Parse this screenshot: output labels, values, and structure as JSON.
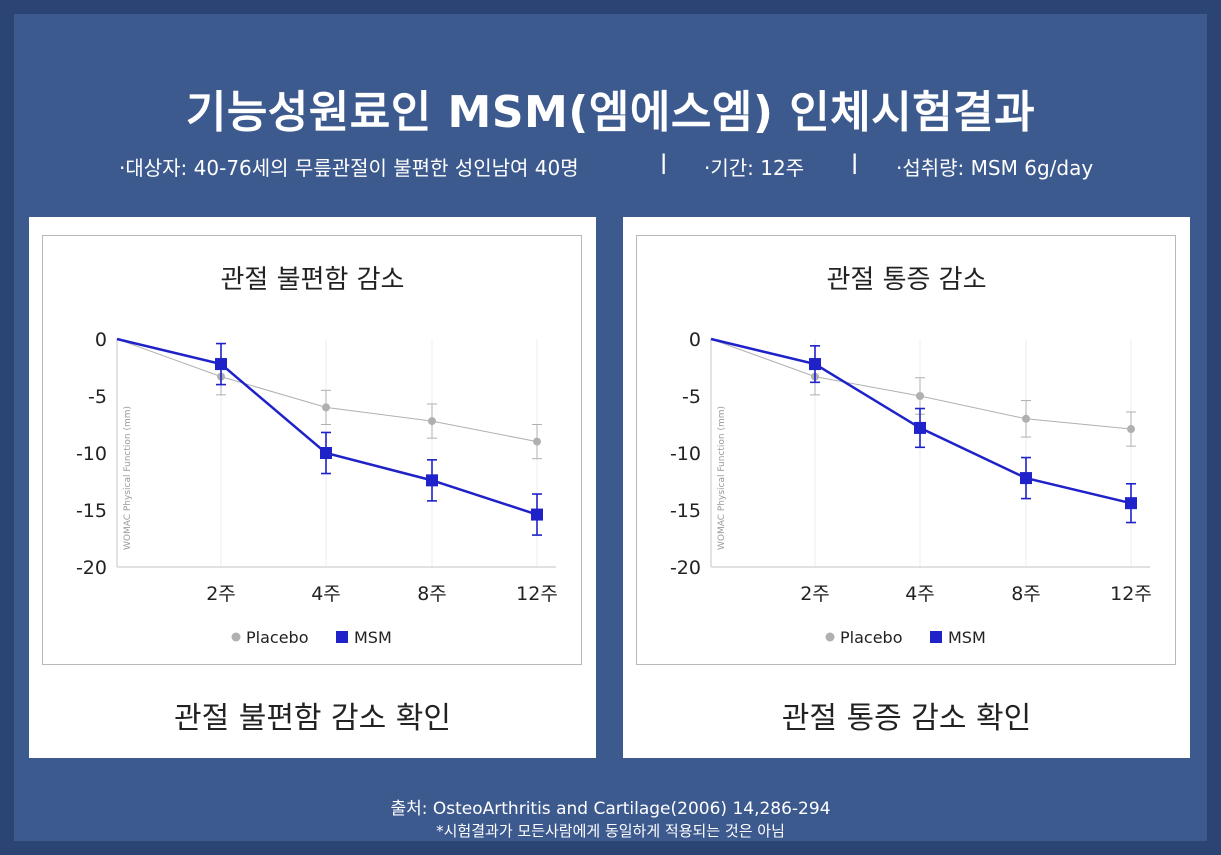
{
  "header": {
    "title": "기능성원료인 MSM(엠에스엠) 인체시험결과",
    "subject": "·대상자: 40-76세의 무릎관절이 불편한 성인남여 40명",
    "period": "·기간: 12주",
    "dose": "·섭취량: MSM 6g/day",
    "separator": "|"
  },
  "charts": {
    "left": {
      "caption": "관절 불편함 감소 확인"
    },
    "right": {
      "caption": "관절 통증 감소 확인"
    }
  },
  "chart_data": [
    {
      "type": "line",
      "title": "관절 불편함 감소",
      "ylabel": "WOMAC Physical Function (mm)",
      "xlabel": "",
      "categories": [
        "",
        "2주",
        "4주",
        "8주",
        "12주"
      ],
      "ylim": [
        -20,
        0
      ],
      "yticks": [
        0,
        -5,
        -10,
        -15,
        -20
      ],
      "series": [
        {
          "name": "Placebo",
          "color": "#b0b0b0",
          "marker": "circle",
          "values": [
            0,
            -3.3,
            -6.0,
            -7.2,
            -9.0
          ],
          "errors": [
            0,
            1.6,
            1.5,
            1.5,
            1.5
          ]
        },
        {
          "name": "MSM",
          "color": "#1e22c8",
          "marker": "square",
          "values": [
            0,
            -2.2,
            -10.0,
            -12.4,
            -15.4
          ],
          "errors": [
            0,
            1.8,
            1.8,
            1.8,
            1.8
          ]
        }
      ],
      "legend_position": "bottom"
    },
    {
      "type": "line",
      "title": "관절 통증 감소",
      "ylabel": "WOMAC Physical Function (mm)",
      "xlabel": "",
      "categories": [
        "",
        "2주",
        "4주",
        "8주",
        "12주"
      ],
      "ylim": [
        -20,
        0
      ],
      "yticks": [
        0,
        -5,
        -10,
        -15,
        -20
      ],
      "series": [
        {
          "name": "Placebo",
          "color": "#b0b0b0",
          "marker": "circle",
          "values": [
            0,
            -3.3,
            -5.0,
            -7.0,
            -7.9
          ],
          "errors": [
            0,
            1.6,
            1.6,
            1.6,
            1.5
          ]
        },
        {
          "name": "MSM",
          "color": "#1e22c8",
          "marker": "square",
          "values": [
            0,
            -2.2,
            -7.8,
            -12.2,
            -14.4
          ],
          "errors": [
            0,
            1.6,
            1.7,
            1.8,
            1.7
          ]
        }
      ],
      "legend_position": "bottom"
    }
  ],
  "footer": {
    "source": "출처: OsteoArthritis and Cartilage(2006) 14,286-294",
    "note": "*시험결과가 모든사람에게 동일하게 적용되는 것은 아님"
  }
}
